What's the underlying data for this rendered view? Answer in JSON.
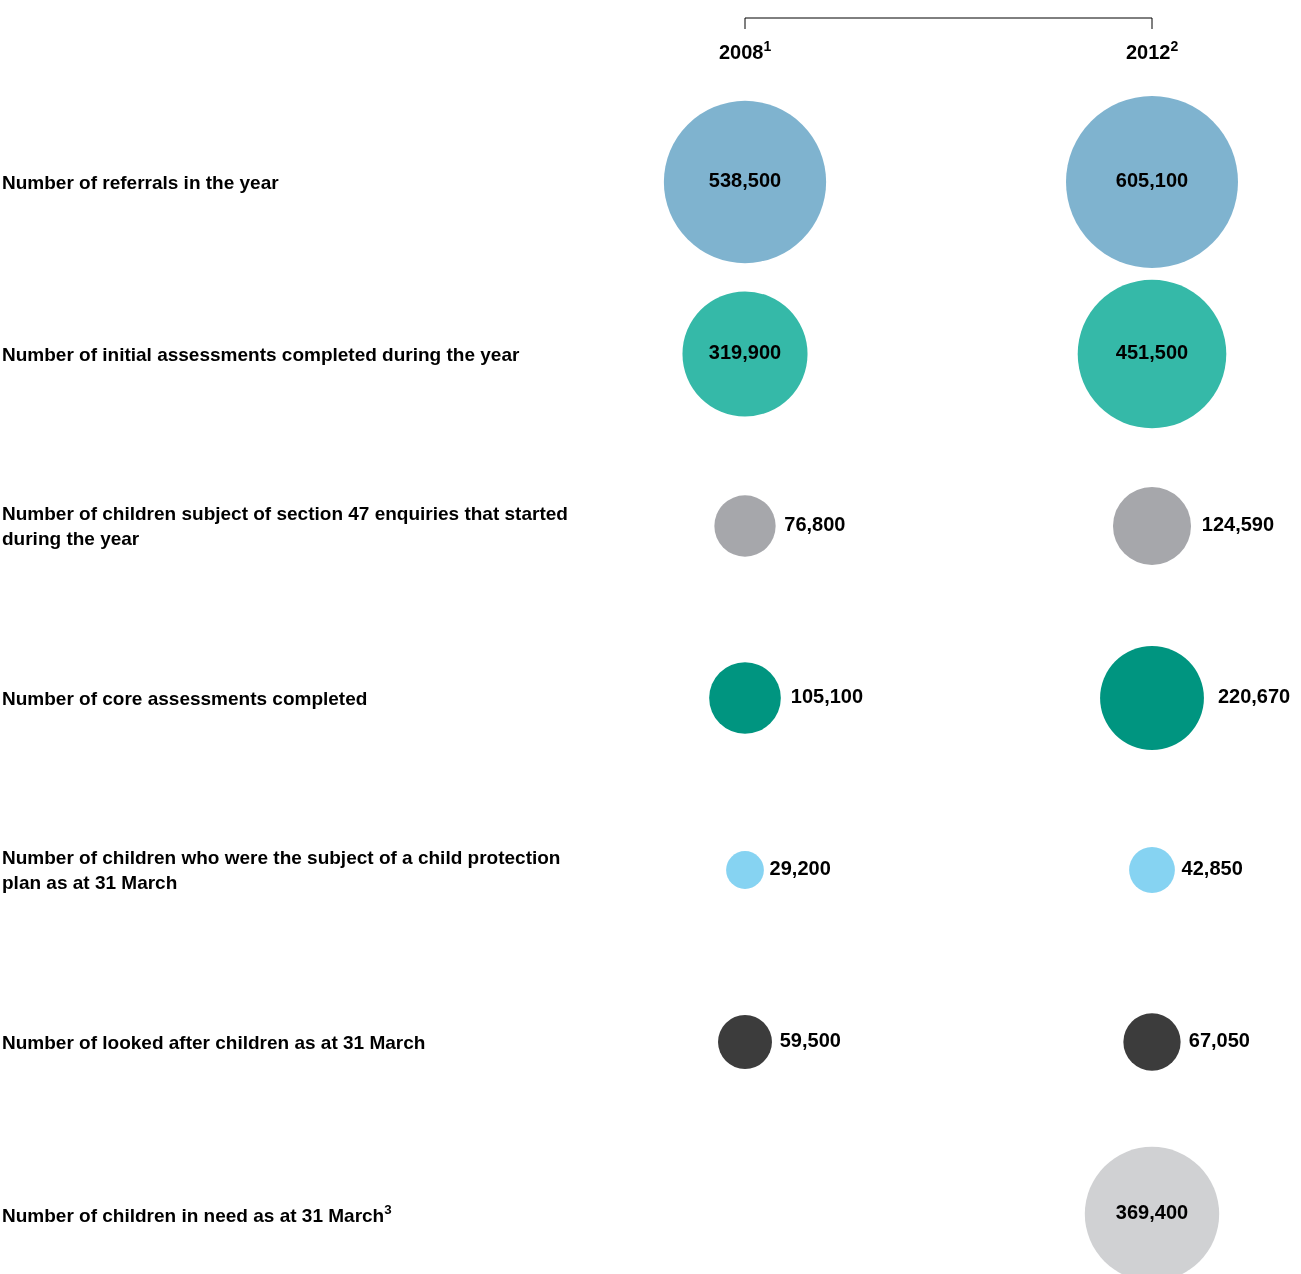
{
  "chart_data": {
    "type": "other",
    "categories": [
      "Number of referrals in the year",
      "Number of initial assessments completed during the year",
      "Number of children subject of section 47 enquiries that started during the year",
      "Number of core assessments completed",
      "Number of children who were the subject of a child protection plan as at 31 March",
      "Number of looked after children as at 31 March",
      "Number of children in need as at 31 March$^{3}$"
    ],
    "series": [
      {
        "name": "2008$^{1}$",
        "colors": [
          "#7fb3cf",
          "#35b9a8",
          "#a6a7ab",
          "#009580",
          "#86d3f2",
          "#3c3c3c",
          "#d0d1d3"
        ],
        "values": [
          538500,
          319900,
          76800,
          105100,
          29200,
          59500,
          null
        ],
        "value_labels": [
          "538,500",
          "319,900",
          "76,800",
          "105,100",
          "29,200",
          "59,500",
          null
        ]
      },
      {
        "name": "2012$^{2}$",
        "colors": [
          "#7fb3cf",
          "#35b9a8",
          "#a6a7ab",
          "#009580",
          "#86d3f2",
          "#3c3c3c",
          "#d0d1d3"
        ],
        "values": [
          605100,
          451500,
          124590,
          220670,
          42850,
          67050,
          369400
        ],
        "value_labels": [
          "605,100",
          "451,500",
          "124,590",
          "220,670",
          "42,850",
          "67,050",
          "369,400"
        ]
      }
    ]
  }
}
